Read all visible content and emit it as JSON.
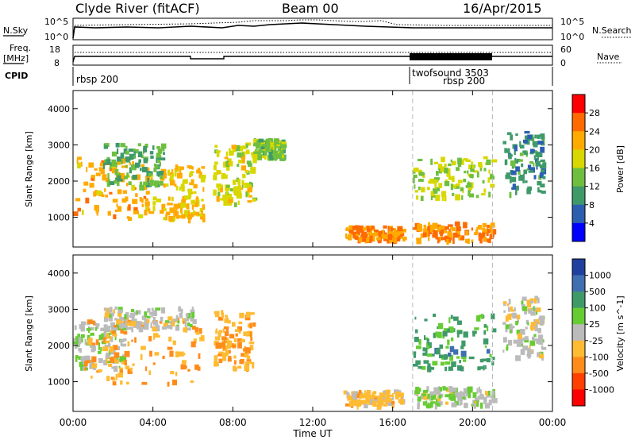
{
  "header": {
    "station": "Clyde River (fitACF)",
    "beam": "Beam 00",
    "date": "16/Apr/2015"
  },
  "time_axis": {
    "label": "Time UT",
    "ticks": [
      "00:00",
      "04:00",
      "08:00",
      "12:00",
      "16:00",
      "20:00",
      "00:00"
    ],
    "range_hours": [
      0,
      24
    ],
    "mode_change_hours": [
      17.0,
      21.0
    ]
  },
  "strip": {
    "nsky_label": "N.Sky",
    "nsearch_label": "N.Search",
    "nsky_ticks": [
      "10^5",
      "10^0"
    ],
    "nsearch_ticks": [
      "10^5",
      "10^0"
    ],
    "freq_label": "Freq.",
    "freq_unit": "[MHz]",
    "freq_ticks": [
      "18",
      "8"
    ],
    "nave_label": "Nave",
    "nave_ticks": [
      "60",
      "0"
    ],
    "cpid_label": "CPID",
    "cpid_segments": [
      {
        "name": "rbsp 200",
        "start_h": 0.0
      },
      {
        "name": "twofsound 3503",
        "start_h": 17.0
      },
      {
        "name": "rbsp 200",
        "start_h": 17.0
      }
    ]
  },
  "power_panel": {
    "ylabel": "Slant Range [km]",
    "yticks": [
      "4000",
      "3000",
      "2000",
      "1000"
    ],
    "cb_label": "Power [dB]",
    "cb_ticks": [
      "28",
      "24",
      "20",
      "16",
      "12",
      "8",
      "4"
    ],
    "cb_colors": [
      "#ff0000",
      "#ff6a00",
      "#ffaa00",
      "#d8d800",
      "#6fbf3f",
      "#3f9a6a",
      "#2c5fb0",
      "#0000ff"
    ]
  },
  "velocity_panel": {
    "ylabel": "Slant Range [km]",
    "yticks": [
      "4000",
      "3000",
      "2000",
      "1000"
    ],
    "cb_label": "Velocity [m s^-1]",
    "cb_ticks": [
      "1000",
      "500",
      "100",
      "25",
      "-25",
      "-100",
      "-500",
      "-1000"
    ],
    "cb_colors": [
      "#2040a0",
      "#3f6fb0",
      "#3f9a6a",
      "#66cc33",
      "#bbbbbb",
      "#ffbb33",
      "#ff8c1a",
      "#ff4000",
      "#ff0000"
    ]
  },
  "chart_data": [
    {
      "type": "heatmap",
      "title": "Power",
      "xlabel": "Time UT",
      "ylabel": "Slant Range [km]",
      "xlim": [
        0,
        24
      ],
      "ylim": [
        180,
        4500
      ],
      "colorbar": {
        "label": "Power [dB]",
        "range": [
          0,
          32
        ]
      },
      "regions": [
        {
          "t0": 0.0,
          "t1": 4.5,
          "r0": 900,
          "r1": 2600,
          "value": 22
        },
        {
          "t0": 1.5,
          "t1": 4.5,
          "r0": 1800,
          "r1": 3000,
          "value": 12
        },
        {
          "t0": 4.5,
          "t1": 6.5,
          "r0": 900,
          "r1": 2400,
          "value": 20
        },
        {
          "t0": 7.0,
          "t1": 9.0,
          "r0": 1300,
          "r1": 3000,
          "value": 18
        },
        {
          "t0": 9.0,
          "t1": 10.5,
          "r0": 2600,
          "r1": 3100,
          "value": 14
        },
        {
          "t0": 13.5,
          "t1": 16.5,
          "r0": 300,
          "r1": 700,
          "value": 24
        },
        {
          "t0": 17.0,
          "t1": 21.0,
          "r0": 300,
          "r1": 800,
          "value": 24
        },
        {
          "t0": 17.0,
          "t1": 21.0,
          "r0": 1500,
          "r1": 2600,
          "value": 16
        },
        {
          "t0": 21.5,
          "t1": 23.5,
          "r0": 1600,
          "r1": 3300,
          "value": 10
        }
      ]
    },
    {
      "type": "heatmap",
      "title": "Velocity",
      "xlabel": "Time UT",
      "ylabel": "Slant Range [km]",
      "xlim": [
        0,
        24
      ],
      "ylim": [
        180,
        4500
      ],
      "colorbar": {
        "label": "Velocity [m s^-1]",
        "range": [
          -1000,
          1000
        ]
      },
      "regions": [
        {
          "t0": 0.0,
          "t1": 2.5,
          "r0": 1300,
          "r1": 2600,
          "value": 100
        },
        {
          "t0": 0.5,
          "t1": 6.5,
          "r0": 900,
          "r1": 2700,
          "value": -300
        },
        {
          "t0": 1.5,
          "t1": 6.0,
          "r0": 2400,
          "r1": 3000,
          "value": 0
        },
        {
          "t0": 7.0,
          "t1": 9.0,
          "r0": 1300,
          "r1": 2900,
          "value": -300
        },
        {
          "t0": 13.5,
          "t1": 16.5,
          "r0": 300,
          "r1": 700,
          "value": -200
        },
        {
          "t0": 17.0,
          "t1": 21.0,
          "r0": 300,
          "r1": 800,
          "value": 40
        },
        {
          "t0": 17.0,
          "t1": 21.0,
          "r0": 1300,
          "r1": 2800,
          "value": 400
        },
        {
          "t0": 21.5,
          "t1": 23.5,
          "r0": 1600,
          "r1": 3300,
          "value": 0
        }
      ]
    }
  ]
}
